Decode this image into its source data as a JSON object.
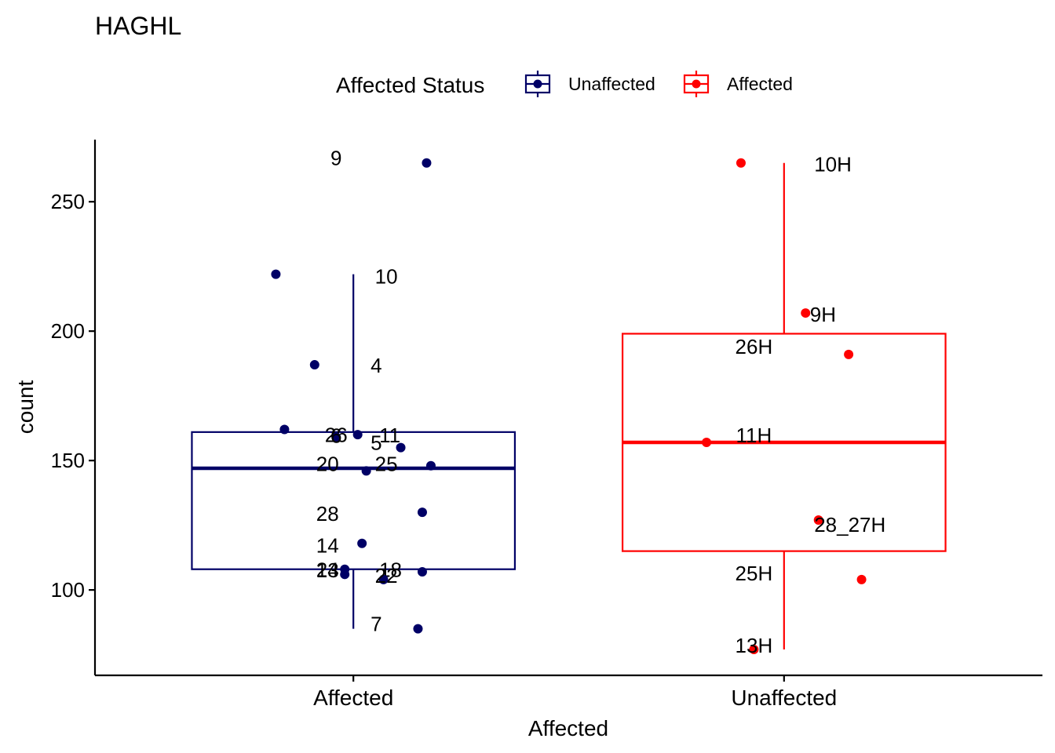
{
  "chart_data": {
    "type": "box",
    "title": "HAGHL",
    "xlabel": "Affected",
    "ylabel": "count",
    "ylim": [
      67,
      274
    ],
    "yticks": [
      100,
      150,
      200,
      250
    ],
    "categories": [
      "Affected",
      "Unaffected"
    ],
    "grid": false,
    "legend": {
      "title": "Affected Status",
      "position": "top",
      "entries": [
        {
          "label": "Unaffected",
          "color": "#000066"
        },
        {
          "label": "Affected",
          "color": "#ff0000"
        }
      ]
    },
    "series": [
      {
        "name": "Unaffected",
        "category": "Affected",
        "color": "#000066",
        "box": {
          "whisker_low": 85,
          "q1": 108,
          "median": 147,
          "q3": 161,
          "whisker_high": 222
        },
        "points": [
          {
            "label": "9",
            "value": 265,
            "jitter": 0.17,
            "label_dx": -0.04,
            "label_dy": -5
          },
          {
            "label": "10",
            "value": 222,
            "jitter": -0.18,
            "label_dx": 0.05,
            "label_dy": 4
          },
          {
            "label": "4",
            "value": 187,
            "jitter": -0.09,
            "label_dx": 0.04,
            "label_dy": 2
          },
          {
            "label": "26",
            "value": 162,
            "jitter": -0.16,
            "label_dx": -0.04,
            "label_dy": 8
          },
          {
            "label": "11",
            "value": 160,
            "jitter": 0.01,
            "label_dx": 0.06,
            "label_dy": 2
          },
          {
            "label": "6",
            "value": 159,
            "jitter": -0.04,
            "label_dx": -0.04,
            "label_dy": -1
          },
          {
            "label": "5",
            "value": 155,
            "jitter": 0.11,
            "label_dx": 0.04,
            "label_dy": -5
          },
          {
            "label": "20",
            "value": 148,
            "jitter": 0.18,
            "label_dx": -0.06,
            "label_dy": -1
          },
          {
            "label": "25",
            "value": 146,
            "jitter": 0.03,
            "label_dx": 0.05,
            "label_dy": -8
          },
          {
            "label": "28",
            "value": 130,
            "jitter": 0.16,
            "label_dx": -0.06,
            "label_dy": 3
          },
          {
            "label": "14",
            "value": 118,
            "jitter": 0.02,
            "label_dx": -0.06,
            "label_dy": 4
          },
          {
            "label": "18",
            "value": 108,
            "jitter": -0.02,
            "label_dx": 0.06,
            "label_dy": 2
          },
          {
            "label": "13",
            "value": 107,
            "jitter": 0.16,
            "label_dx": -0.06,
            "label_dy": -1
          },
          {
            "label": "22",
            "value": 104,
            "jitter": 0.07,
            "label_dx": 0.05,
            "label_dy": -4
          },
          {
            "label": "24",
            "value": 106,
            "jitter": -0.02,
            "label_dx": -0.06,
            "label_dy": -5
          },
          {
            "label": "7",
            "value": 85,
            "jitter": 0.15,
            "label_dx": 0.04,
            "label_dy": -5
          }
        ]
      },
      {
        "name": "Affected",
        "category": "Unaffected",
        "color": "#ff0000",
        "box": {
          "whisker_low": 77,
          "q1": 115,
          "median": 157,
          "q3": 199,
          "whisker_high": 265
        },
        "points": [
          {
            "label": "10H",
            "value": 265,
            "jitter": -0.1,
            "label_dx": 0.07,
            "label_dy": 3
          },
          {
            "label": "9H",
            "value": 207,
            "jitter": 0.05,
            "label_dx": 0.06,
            "label_dy": 3
          },
          {
            "label": "26H",
            "value": 191,
            "jitter": 0.15,
            "label_dx": -0.07,
            "label_dy": -9
          },
          {
            "label": "11H",
            "value": 157,
            "jitter": -0.18,
            "label_dx": -0.07,
            "label_dy": -8
          },
          {
            "label": "28_27H",
            "value": 127,
            "jitter": 0.08,
            "label_dx": 0.07,
            "label_dy": 7
          },
          {
            "label": "25H",
            "value": 104,
            "jitter": 0.18,
            "label_dx": -0.07,
            "label_dy": -7
          },
          {
            "label": "13H",
            "value": 77,
            "jitter": -0.07,
            "label_dx": -0.07,
            "label_dy": -4
          }
        ]
      }
    ]
  }
}
